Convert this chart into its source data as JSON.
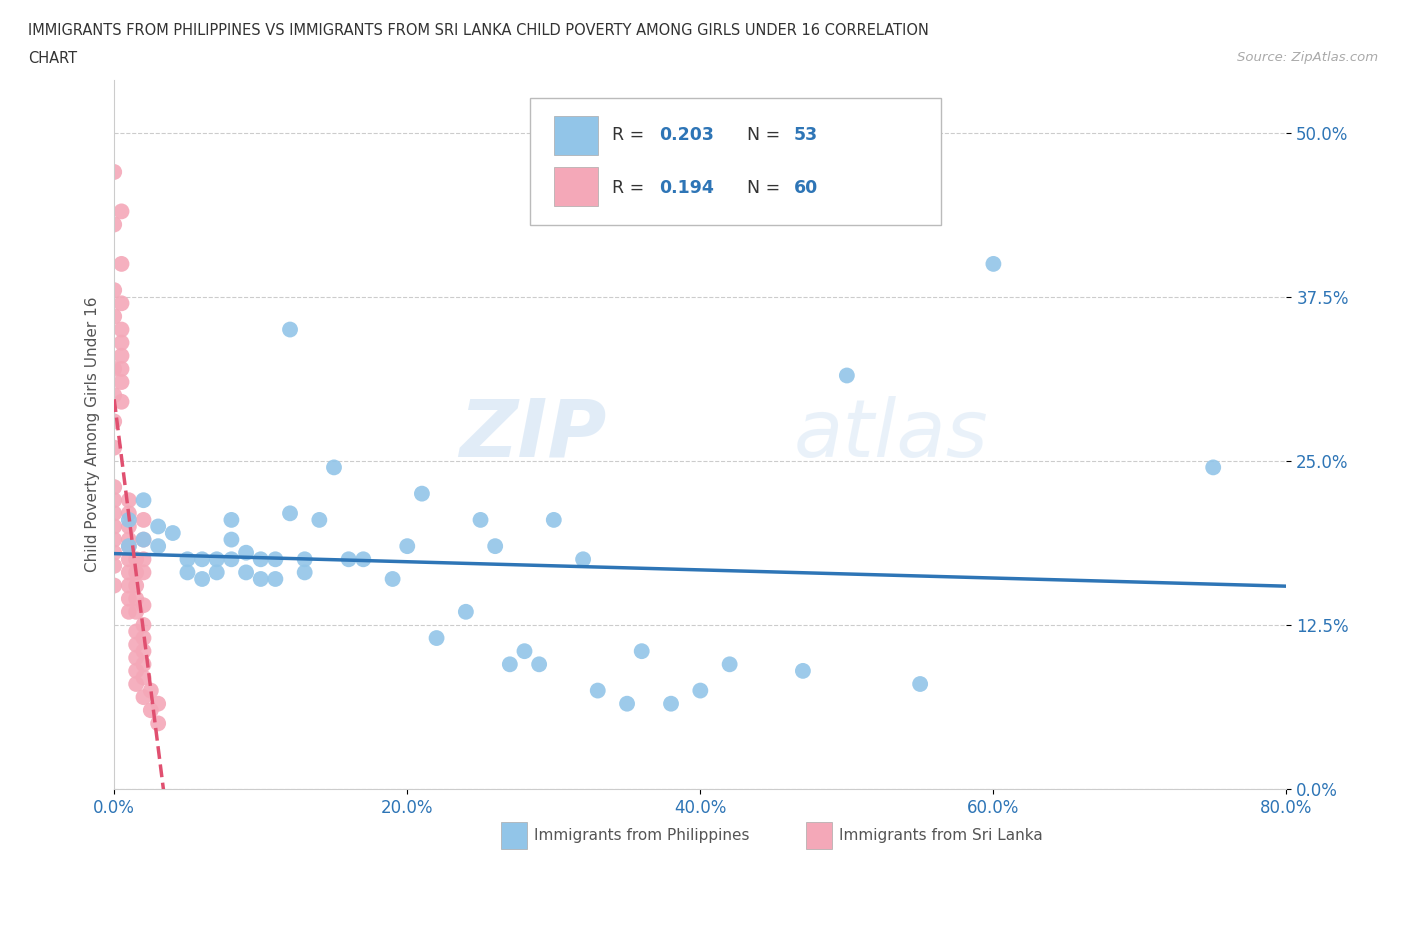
{
  "title_line1": "IMMIGRANTS FROM PHILIPPINES VS IMMIGRANTS FROM SRI LANKA CHILD POVERTY AMONG GIRLS UNDER 16 CORRELATION",
  "title_line2": "CHART",
  "source_text": "Source: ZipAtlas.com",
  "ylabel": "Child Poverty Among Girls Under 16",
  "xlabel_ticks": [
    "0.0%",
    "20.0%",
    "40.0%",
    "60.0%",
    "80.0%"
  ],
  "ylabel_ticks": [
    "0.0%",
    "12.5%",
    "25.0%",
    "37.5%",
    "50.0%"
  ],
  "xlim": [
    0.0,
    0.8
  ],
  "ylim": [
    0.0,
    0.54
  ],
  "R_philippines": 0.203,
  "N_philippines": 53,
  "R_srilanka": 0.194,
  "N_srilanka": 60,
  "philippines_color": "#92C5E8",
  "srilanka_color": "#F4A8B8",
  "philippines_line_color": "#2E75B6",
  "srilanka_line_color": "#E05070",
  "watermark_zip": "ZIP",
  "watermark_atlas": "atlas",
  "philippines_x": [
    0.01,
    0.01,
    0.02,
    0.02,
    0.03,
    0.03,
    0.04,
    0.05,
    0.05,
    0.06,
    0.06,
    0.07,
    0.07,
    0.08,
    0.08,
    0.08,
    0.09,
    0.09,
    0.1,
    0.1,
    0.11,
    0.11,
    0.12,
    0.12,
    0.13,
    0.13,
    0.14,
    0.15,
    0.16,
    0.17,
    0.19,
    0.2,
    0.21,
    0.22,
    0.24,
    0.25,
    0.26,
    0.27,
    0.28,
    0.29,
    0.3,
    0.32,
    0.33,
    0.35,
    0.36,
    0.38,
    0.4,
    0.42,
    0.47,
    0.5,
    0.55,
    0.6,
    0.75
  ],
  "philippines_y": [
    0.205,
    0.185,
    0.22,
    0.19,
    0.2,
    0.185,
    0.195,
    0.175,
    0.165,
    0.175,
    0.16,
    0.175,
    0.165,
    0.205,
    0.19,
    0.175,
    0.18,
    0.165,
    0.175,
    0.16,
    0.175,
    0.16,
    0.21,
    0.35,
    0.175,
    0.165,
    0.205,
    0.245,
    0.175,
    0.175,
    0.16,
    0.185,
    0.225,
    0.115,
    0.135,
    0.205,
    0.185,
    0.095,
    0.105,
    0.095,
    0.205,
    0.175,
    0.075,
    0.065,
    0.105,
    0.065,
    0.075,
    0.095,
    0.09,
    0.315,
    0.08,
    0.4,
    0.245
  ],
  "srilanka_x": [
    0.0,
    0.0,
    0.0,
    0.0,
    0.0,
    0.0,
    0.0,
    0.0,
    0.0,
    0.0,
    0.0,
    0.0,
    0.0,
    0.0,
    0.0,
    0.0,
    0.005,
    0.005,
    0.005,
    0.005,
    0.005,
    0.005,
    0.005,
    0.005,
    0.005,
    0.01,
    0.01,
    0.01,
    0.01,
    0.01,
    0.01,
    0.01,
    0.01,
    0.01,
    0.01,
    0.015,
    0.015,
    0.015,
    0.015,
    0.015,
    0.015,
    0.015,
    0.015,
    0.015,
    0.015,
    0.02,
    0.02,
    0.02,
    0.02,
    0.02,
    0.02,
    0.02,
    0.02,
    0.02,
    0.02,
    0.02,
    0.025,
    0.025,
    0.03,
    0.03
  ],
  "srilanka_y": [
    0.47,
    0.43,
    0.38,
    0.36,
    0.32,
    0.3,
    0.28,
    0.26,
    0.23,
    0.22,
    0.21,
    0.2,
    0.19,
    0.18,
    0.17,
    0.155,
    0.44,
    0.4,
    0.37,
    0.35,
    0.34,
    0.33,
    0.32,
    0.31,
    0.295,
    0.22,
    0.21,
    0.2,
    0.19,
    0.185,
    0.175,
    0.165,
    0.155,
    0.145,
    0.135,
    0.175,
    0.165,
    0.155,
    0.145,
    0.135,
    0.12,
    0.11,
    0.1,
    0.09,
    0.08,
    0.205,
    0.19,
    0.175,
    0.165,
    0.14,
    0.125,
    0.115,
    0.105,
    0.095,
    0.085,
    0.07,
    0.075,
    0.06,
    0.065,
    0.05
  ]
}
